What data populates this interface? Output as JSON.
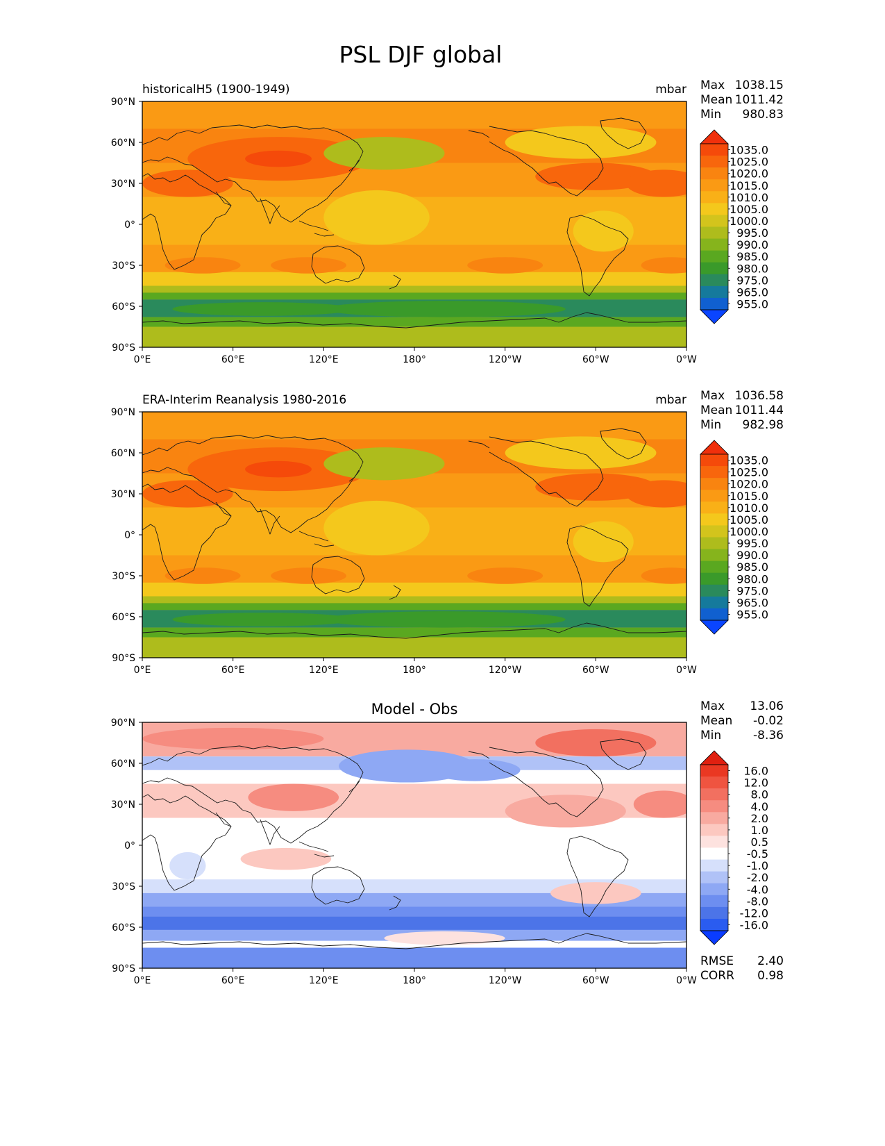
{
  "title": "PSL DJF global",
  "colors": {
    "psl": [
      "#0a45ff",
      "#1060d0",
      "#157a9c",
      "#2a8a5c",
      "#3a9a2a",
      "#5aa820",
      "#86b41c",
      "#aebc1c",
      "#d3c41c",
      "#f4c81c",
      "#f9b017",
      "#fa9a14",
      "#f98410",
      "#f8660c",
      "#f54a0a",
      "#f0300c"
    ],
    "diff": [
      "#0a3cff",
      "#2a5cf0",
      "#4c74e8",
      "#6d8ef0",
      "#8ea8f4",
      "#b0c2f7",
      "#d6e0fb",
      "#ffffff",
      "#fde2df",
      "#fcc8c0",
      "#f8aaa0",
      "#f68c80",
      "#f27060",
      "#ef5440",
      "#ea3822",
      "#e02010"
    ]
  },
  "panels": [
    {
      "key": "model",
      "left_title": "historicalH5 (1900-1949)",
      "center_title": "",
      "units": "mbar",
      "stats": [
        {
          "label": "Max",
          "value": "1038.15"
        },
        {
          "label": "Mean",
          "value": "1011.42"
        },
        {
          "label": "Min",
          "value": "980.83"
        }
      ],
      "bottom_stats": [],
      "colorbar": {
        "type": "psl",
        "labels": [
          "1035.0",
          "1025.0",
          "1020.0",
          "1015.0",
          "1010.0",
          "1005.0",
          "1000.0",
          "995.0",
          "990.0",
          "985.0",
          "980.0",
          "975.0",
          "965.0",
          "955.0"
        ]
      }
    },
    {
      "key": "obs",
      "left_title": "ERA-Interim Reanalysis 1980-2016",
      "center_title": "",
      "units": "mbar",
      "stats": [
        {
          "label": "Max",
          "value": "1036.58"
        },
        {
          "label": "Mean",
          "value": "1011.44"
        },
        {
          "label": "Min",
          "value": "982.98"
        }
      ],
      "bottom_stats": [],
      "colorbar": {
        "type": "psl",
        "labels": [
          "1035.0",
          "1025.0",
          "1020.0",
          "1015.0",
          "1010.0",
          "1005.0",
          "1000.0",
          "995.0",
          "990.0",
          "985.0",
          "980.0",
          "975.0",
          "965.0",
          "955.0"
        ]
      }
    },
    {
      "key": "diff",
      "left_title": "",
      "center_title": "Model - Obs",
      "units": "",
      "stats": [
        {
          "label": "Max",
          "value": "13.06"
        },
        {
          "label": "Mean",
          "value": "-0.02"
        },
        {
          "label": "Min",
          "value": "-8.36"
        }
      ],
      "bottom_stats": [
        {
          "label": "RMSE",
          "value": "2.40"
        },
        {
          "label": "CORR",
          "value": "0.98"
        }
      ],
      "colorbar": {
        "type": "diff",
        "labels": [
          "16.0",
          "12.0",
          "8.0",
          "4.0",
          "2.0",
          "1.0",
          "0.5",
          "-0.5",
          "-1.0",
          "-2.0",
          "-4.0",
          "-8.0",
          "-12.0",
          "-16.0"
        ]
      }
    }
  ],
  "axes": {
    "yticks": [
      "90°N",
      "60°N",
      "30°N",
      "0°",
      "30°S",
      "60°S",
      "90°S"
    ],
    "xticks": [
      "0°E",
      "60°E",
      "120°E",
      "180°",
      "120°W",
      "60°W",
      "0°W"
    ]
  }
}
